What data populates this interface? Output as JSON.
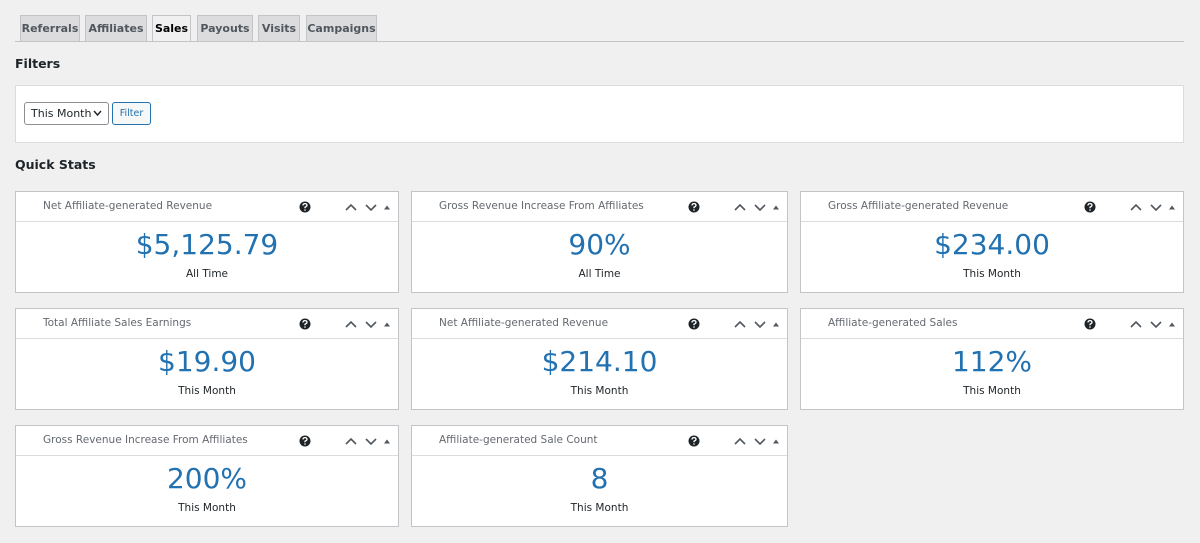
{
  "tabs": {
    "items": [
      "Referrals",
      "Affiliates",
      "Sales",
      "Payouts",
      "Visits",
      "Campaigns"
    ],
    "active": 2
  },
  "filters": {
    "title": "Filters",
    "select": "This Month",
    "button": "Filter"
  },
  "quick_stats": {
    "title": "Quick Stats",
    "cards": [
      {
        "title": "Net Affiliate-generated Revenue",
        "value": "$5,125.79",
        "period": "All Time"
      },
      {
        "title": "Gross Revenue Increase From Affiliates",
        "value": "90%",
        "period": "All Time"
      },
      {
        "title": "Gross Affiliate-generated Revenue",
        "value": "$234.00",
        "period": "This Month"
      },
      {
        "title": "Total Affiliate Sales Earnings",
        "value": "$19.90",
        "period": "This Month"
      },
      {
        "title": "Net Affiliate-generated Revenue",
        "value": "$214.10",
        "period": "This Month"
      },
      {
        "title": "Affiliate-generated Sales",
        "value": "112%",
        "period": "This Month"
      },
      {
        "title": "Gross Revenue Increase From Affiliates",
        "value": "200%",
        "period": "This Month"
      },
      {
        "title": "Affiliate-generated Sale Count",
        "value": "8",
        "period": "This Month"
      }
    ]
  }
}
